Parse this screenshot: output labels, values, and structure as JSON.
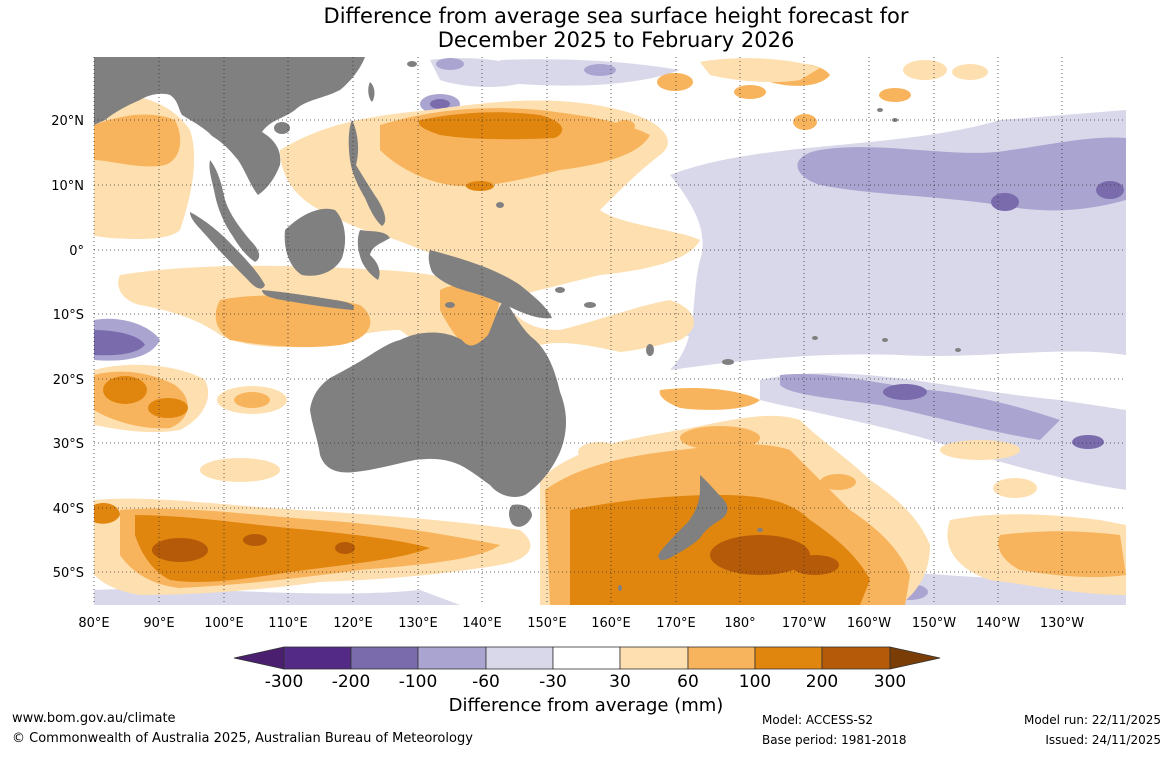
{
  "title": {
    "line1": "Difference from average sea surface height forecast for",
    "line2": "December 2025 to February 2026"
  },
  "map": {
    "lon_labels": [
      "80°E",
      "90°E",
      "100°E",
      "110°E",
      "120°E",
      "130°E",
      "140°E",
      "150°E",
      "160°E",
      "170°E",
      "180°",
      "170°W",
      "160°W",
      "150°W",
      "140°W",
      "130°W"
    ],
    "lat_labels": [
      "20°N",
      "10°N",
      "0°",
      "10°S",
      "20°S",
      "30°S",
      "40°S",
      "50°S"
    ],
    "land_color": "#808080",
    "grid": "dotted"
  },
  "colorbar": {
    "title": "Difference from average (mm)",
    "ticks": [
      "-300",
      "-200",
      "-100",
      "-60",
      "-30",
      "30",
      "60",
      "100",
      "200",
      "300"
    ],
    "colors": [
      "#4a1f70",
      "#532a86",
      "#7a6bad",
      "#aaa4d0",
      "#d8d8ea",
      "#ffffff",
      "#fddfb0",
      "#f8b45c",
      "#e0860f",
      "#b45a08",
      "#7a3d05"
    ]
  },
  "footer": {
    "website": "www.bom.gov.au/climate",
    "copyright": "© Commonwealth of Australia 2025, Australian Bureau of Meteorology",
    "model": "Model: ACCESS-S2",
    "base_period": "Base period: 1981-2018",
    "model_run": "Model run: 22/11/2025",
    "issued": "Issued: 24/11/2025"
  }
}
